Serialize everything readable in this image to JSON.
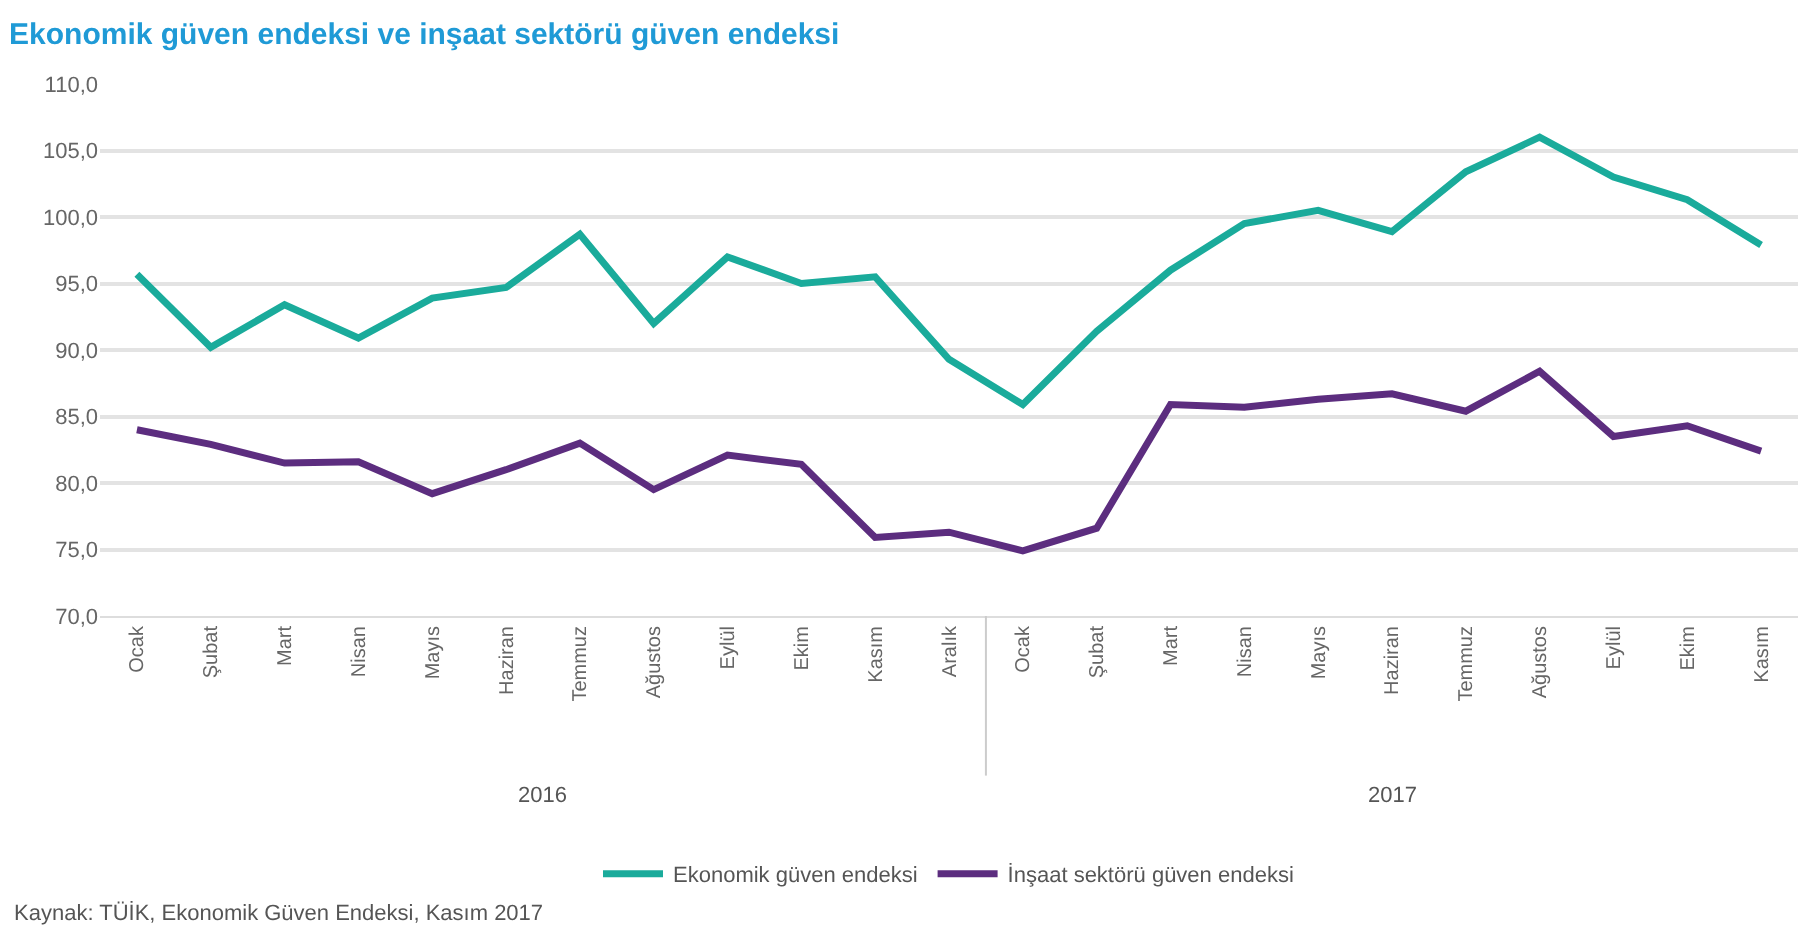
{
  "chart_data": {
    "type": "line",
    "title": "Ekonomik güven endeksi ve inşaat sektörü güven endeksi",
    "categories": [
      "Ocak",
      "Şubat",
      "Mart",
      "Nisan",
      "Mayıs",
      "Haziran",
      "Temmuz",
      "Ağustos",
      "Eylül",
      "Ekim",
      "Kasım",
      "Aralık",
      "Ocak",
      "Şubat",
      "Mart",
      "Nisan",
      "Mayıs",
      "Haziran",
      "Temmuz",
      "Ağustos",
      "Eylül",
      "Ekim",
      "Kasım"
    ],
    "series": [
      {
        "name": "Ekonomik güven endeksi",
        "color": "#1aab9b",
        "values": [
          95.7,
          90.2,
          93.4,
          90.9,
          93.9,
          94.7,
          98.7,
          92.0,
          97.0,
          95.0,
          95.5,
          89.3,
          85.9,
          91.4,
          96.0,
          99.5,
          100.5,
          98.9,
          103.4,
          106.0,
          103.0,
          101.3,
          97.9
        ]
      },
      {
        "name": "İnşaat sektörü güven endeksi",
        "color": "#5c2d7f",
        "values": [
          84.0,
          82.9,
          81.5,
          81.6,
          79.2,
          81.0,
          83.0,
          79.5,
          82.1,
          81.4,
          75.9,
          76.3,
          74.9,
          76.6,
          85.9,
          85.7,
          86.3,
          86.7,
          85.4,
          88.4,
          83.5,
          84.3,
          82.4
        ]
      }
    ],
    "ylim": [
      70,
      110
    ],
    "yticks": [
      {
        "value": 70,
        "label": "70,0"
      },
      {
        "value": 75,
        "label": "75,0"
      },
      {
        "value": 80,
        "label": "80,0"
      },
      {
        "value": 85,
        "label": "85,0"
      },
      {
        "value": 90,
        "label": "90,0"
      },
      {
        "value": 95,
        "label": "95,0"
      },
      {
        "value": 100,
        "label": "100,0"
      },
      {
        "value": 105,
        "label": "105,0"
      },
      {
        "value": 110,
        "label": "110,0"
      }
    ],
    "grid": "y",
    "legend": "bottom",
    "marker": "none",
    "line_style": "solid",
    "annotations": [
      "2016",
      "2017",
      "Kaynak: TÜİK, Ekonomik Güven Endeksi, Kasım 2017"
    ]
  }
}
